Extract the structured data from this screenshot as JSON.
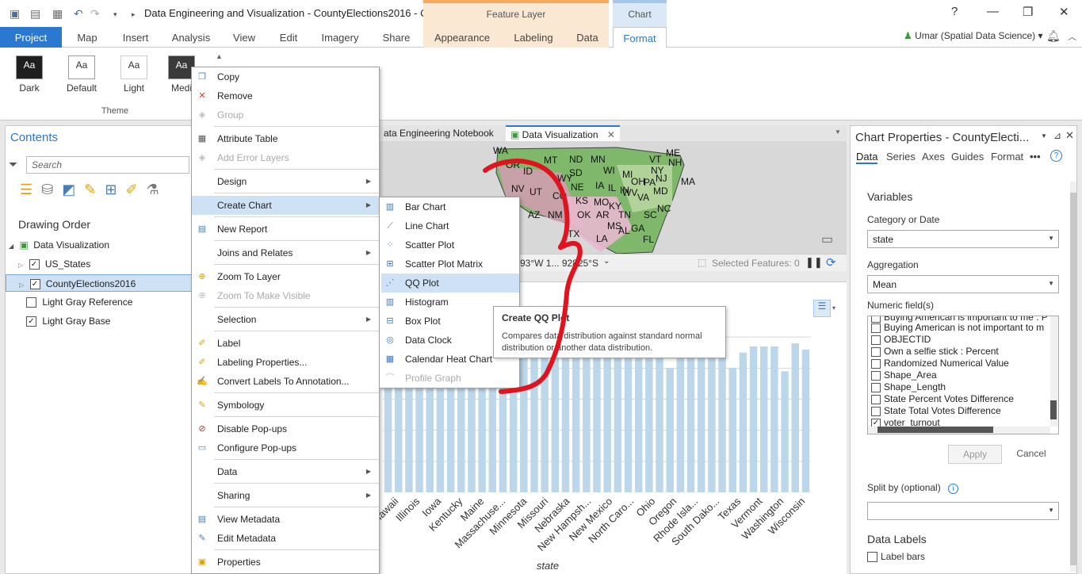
{
  "titlebar": {
    "title": "Data Engineering and Visualization - CountyElections2016 - Co...",
    "context_feature": "Feature Layer",
    "context_chart": "Chart",
    "help": "?",
    "minimize": "—",
    "restore": "❐",
    "close": "✕"
  },
  "tabs": [
    "Project",
    "Map",
    "Insert",
    "Analysis",
    "View",
    "Edit",
    "Imagery",
    "Share",
    "Appearance",
    "Labeling",
    "Data",
    "Format"
  ],
  "user": "Umar (Spatial Data Science) ▾",
  "ribbon": {
    "themes": [
      "Dark",
      "Default",
      "Light",
      "Medi"
    ],
    "theme_sample": "Aa",
    "group_label": "Theme"
  },
  "contents": {
    "title": "Contents",
    "search_placeholder": "Search",
    "drawing_order": "Drawing Order",
    "map_name": "Data Visualization",
    "layers": [
      {
        "name": "US_States",
        "checked": true
      },
      {
        "name": "CountyElections2016",
        "checked": true,
        "selected": true
      },
      {
        "name": "Light Gray Reference",
        "checked": false
      },
      {
        "name": "Light Gray Base",
        "checked": true
      }
    ]
  },
  "view_tabs": {
    "notebook": "ata Engineering Notebook",
    "map": "Data Visualization"
  },
  "map": {
    "states": [
      "WA",
      "MT",
      "ND",
      "MN",
      "OR",
      "ID",
      "SD",
      "WI",
      "MI",
      "NY",
      "VT",
      "ME",
      "NH",
      "WY",
      "NE",
      "IA",
      "IL",
      "IN",
      "OH",
      "PA",
      "NJ",
      "MA",
      "NV",
      "UT",
      "CO",
      "KS",
      "MO",
      "KY",
      "WV",
      "VA",
      "MD",
      "AZ",
      "NM",
      "OK",
      "AR",
      "TN",
      "NC",
      "SC",
      "MS",
      "AL",
      "GA",
      "TX",
      "LA",
      "FL"
    ],
    "coords": "93°W 1... 92825°S",
    "selected_features": "Selected Features: 0"
  },
  "chart": {
    "xlabel": "state",
    "categories": [
      "Hawaii",
      "Illinois",
      "Iowa",
      "Kentucky",
      "Maine",
      "Massachuse...",
      "Minnesota",
      "Missouri",
      "Nebraska",
      "New Hampsh...",
      "New Mexico",
      "North Caro...",
      "Ohio",
      "Oregon",
      "Rhode Isla...",
      "South Dako...",
      "Texas",
      "Vermont",
      "Washington",
      "Wisconsin"
    ]
  },
  "chart_data": {
    "type": "bar",
    "xlabel": "state",
    "ylabel": "",
    "values": [
      44,
      38,
      42,
      44,
      45,
      43,
      42,
      44,
      47,
      42,
      44,
      47,
      42,
      45,
      48,
      47,
      49,
      44,
      46,
      45,
      48,
      52,
      46,
      45,
      46,
      44,
      48,
      40,
      45,
      50,
      45,
      46,
      44,
      40,
      45,
      47,
      47,
      47,
      39,
      48,
      46
    ]
  },
  "props": {
    "title": "Chart Properties - CountyElecti...",
    "tabs": [
      "Data",
      "Series",
      "Axes",
      "Guides",
      "Format"
    ],
    "more": "•••",
    "variables": "Variables",
    "category_label": "Category or Date",
    "category_value": "state",
    "aggregation_label": "Aggregation",
    "aggregation_value": "Mean",
    "numeric_label": "Numeric field(s)",
    "numeric_fields": [
      {
        "name": "Buying American is important to me : P",
        "checked": false
      },
      {
        "name": "Buying American is not important to m",
        "checked": false
      },
      {
        "name": "OBJECTID",
        "checked": false
      },
      {
        "name": "Own a selfie stick : Percent",
        "checked": false
      },
      {
        "name": "Randomized Numerical Value",
        "checked": false
      },
      {
        "name": "Shape_Area",
        "checked": false
      },
      {
        "name": "Shape_Length",
        "checked": false
      },
      {
        "name": "State Percent Votes Difference",
        "checked": false
      },
      {
        "name": "State Total Votes Difference",
        "checked": false
      },
      {
        "name": "voter_turnout",
        "checked": true
      }
    ],
    "apply": "Apply",
    "cancel": "Cancel",
    "split_label": "Split by (optional)",
    "split_value": "",
    "data_labels": "Data Labels",
    "label_bars": "Label bars"
  },
  "context_menu": {
    "items": [
      {
        "label": "Copy",
        "icon": "copy-icon"
      },
      {
        "label": "Remove",
        "icon": "remove-icon"
      },
      {
        "label": "Group",
        "icon": "group-icon",
        "disabled": true
      },
      {
        "label": "Attribute Table",
        "icon": "table-icon"
      },
      {
        "label": "Add Error Layers",
        "icon": "error-layers-icon",
        "disabled": true
      },
      {
        "label": "Design",
        "submenu": true
      },
      {
        "label": "Create Chart",
        "submenu": true,
        "highlighted": true
      },
      {
        "label": "New Report",
        "icon": "report-icon"
      },
      {
        "label": "Joins and Relates",
        "submenu": true
      },
      {
        "label": "Zoom To Layer",
        "icon": "zoom-icon"
      },
      {
        "label": "Zoom To Make Visible",
        "icon": "zoom-visible-icon",
        "disabled": true
      },
      {
        "label": "Selection",
        "submenu": true
      },
      {
        "label": "Label",
        "icon": "label-icon"
      },
      {
        "label": "Labeling Properties...",
        "icon": "labeling-icon"
      },
      {
        "label": "Convert Labels To Annotation...",
        "icon": "annotation-icon"
      },
      {
        "label": "Symbology",
        "icon": "symbology-icon"
      },
      {
        "label": "Disable Pop-ups",
        "icon": "popup-off-icon"
      },
      {
        "label": "Configure Pop-ups",
        "icon": "popup-icon"
      },
      {
        "label": "Data",
        "submenu": true
      },
      {
        "label": "Sharing",
        "submenu": true
      },
      {
        "label": "View Metadata",
        "icon": "metadata-icon"
      },
      {
        "label": "Edit Metadata",
        "icon": "edit-metadata-icon"
      },
      {
        "label": "Properties",
        "icon": "properties-icon"
      }
    ]
  },
  "submenu": {
    "items": [
      {
        "label": "Bar Chart",
        "icon": "bar-chart-icon"
      },
      {
        "label": "Line Chart",
        "icon": "line-chart-icon"
      },
      {
        "label": "Scatter Plot",
        "icon": "scatter-icon"
      },
      {
        "label": "Scatter Plot Matrix",
        "icon": "scatter-matrix-icon"
      },
      {
        "label": "QQ Plot",
        "icon": "qq-plot-icon",
        "highlighted": true
      },
      {
        "label": "Histogram",
        "icon": "histogram-icon"
      },
      {
        "label": "Box Plot",
        "icon": "box-plot-icon"
      },
      {
        "label": "Data Clock",
        "icon": "data-clock-icon"
      },
      {
        "label": "Calendar Heat Chart",
        "icon": "calendar-icon"
      },
      {
        "label": "Profile Graph",
        "icon": "profile-icon",
        "disabled": true
      }
    ]
  },
  "tooltip": {
    "title": "Create QQ Plot",
    "description": "Compares data distribution against standard normal distribution or another data distribution."
  },
  "colors": {
    "accent": "#2b78d0",
    "highlight": "#cfe1f4",
    "bar": "#bcd7ea",
    "annotation": "#e0141e"
  }
}
